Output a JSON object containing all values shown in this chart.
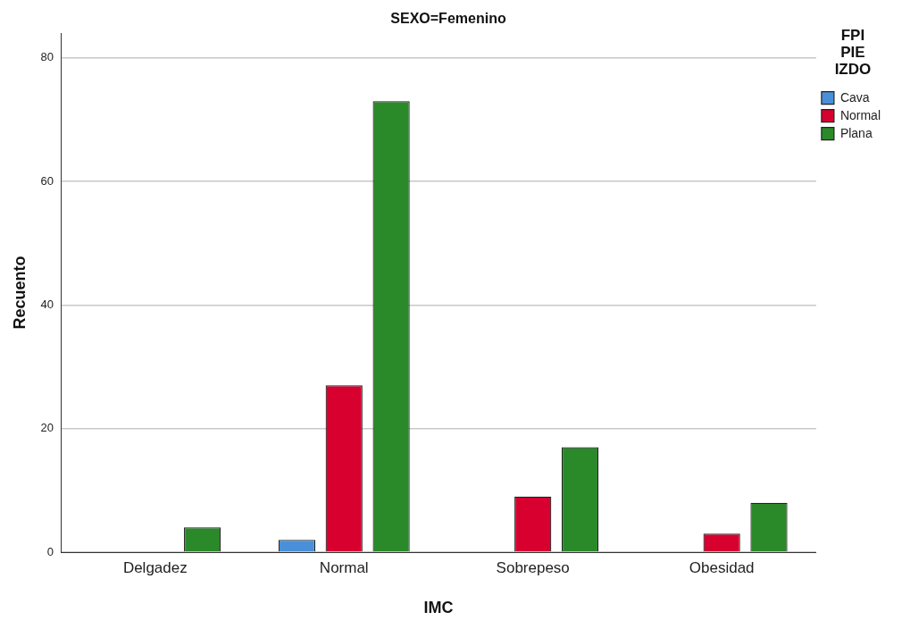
{
  "chart_data": {
    "type": "bar",
    "title": "SEXO=Femenino",
    "xlabel": "IMC",
    "ylabel": "Recuento",
    "legend_title": "FPI PIE IZDO",
    "categories": [
      "Delgadez",
      "Normal",
      "Sobrepeso",
      "Obesidad"
    ],
    "series": [
      {
        "name": "Cava",
        "color": "#4a90d9",
        "values": [
          null,
          2,
          null,
          null
        ]
      },
      {
        "name": "Normal",
        "color": "#d7002f",
        "values": [
          null,
          27,
          9,
          3
        ]
      },
      {
        "name": "Plana",
        "color": "#2a8a2a",
        "values": [
          4,
          73,
          17,
          8
        ]
      }
    ],
    "ylim": [
      0,
      84
    ],
    "yticks": [
      0,
      20,
      40,
      60,
      80
    ],
    "grid": "y",
    "legend": "top right"
  }
}
